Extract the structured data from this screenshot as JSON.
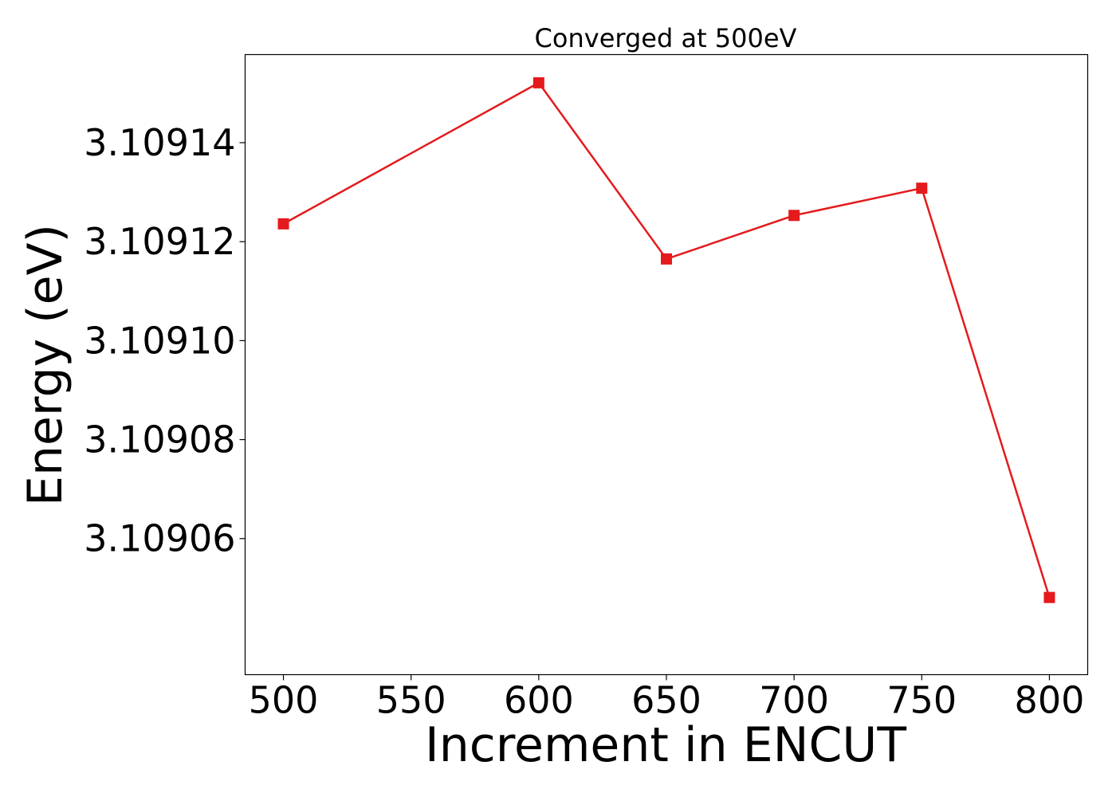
{
  "chart_data": {
    "type": "line",
    "title": "Converged at 500eV",
    "xlabel": "Increment in ENCUT",
    "ylabel": "Energy (eV)",
    "xlim": [
      485,
      815
    ],
    "ylim": [
      3.1090325,
      3.1091578
    ],
    "x_ticks": [
      500,
      550,
      600,
      650,
      700,
      750,
      800
    ],
    "x_tick_labels": [
      "500",
      "550",
      "600",
      "650",
      "700",
      "750",
      "800"
    ],
    "y_ticks": [
      3.10906,
      3.10908,
      3.1091,
      3.10912,
      3.10914
    ],
    "y_tick_labels": [
      "3.10906",
      "3.10908",
      "3.10910",
      "3.10912",
      "3.10914"
    ],
    "grid": false,
    "series": [
      {
        "color": "#e41a1c",
        "marker": "square",
        "x": [
          500,
          600,
          650,
          700,
          750,
          800
        ],
        "y": [
          3.1091236,
          3.1091521,
          3.1091165,
          3.1091253,
          3.1091308,
          3.1090481
        ]
      }
    ]
  }
}
